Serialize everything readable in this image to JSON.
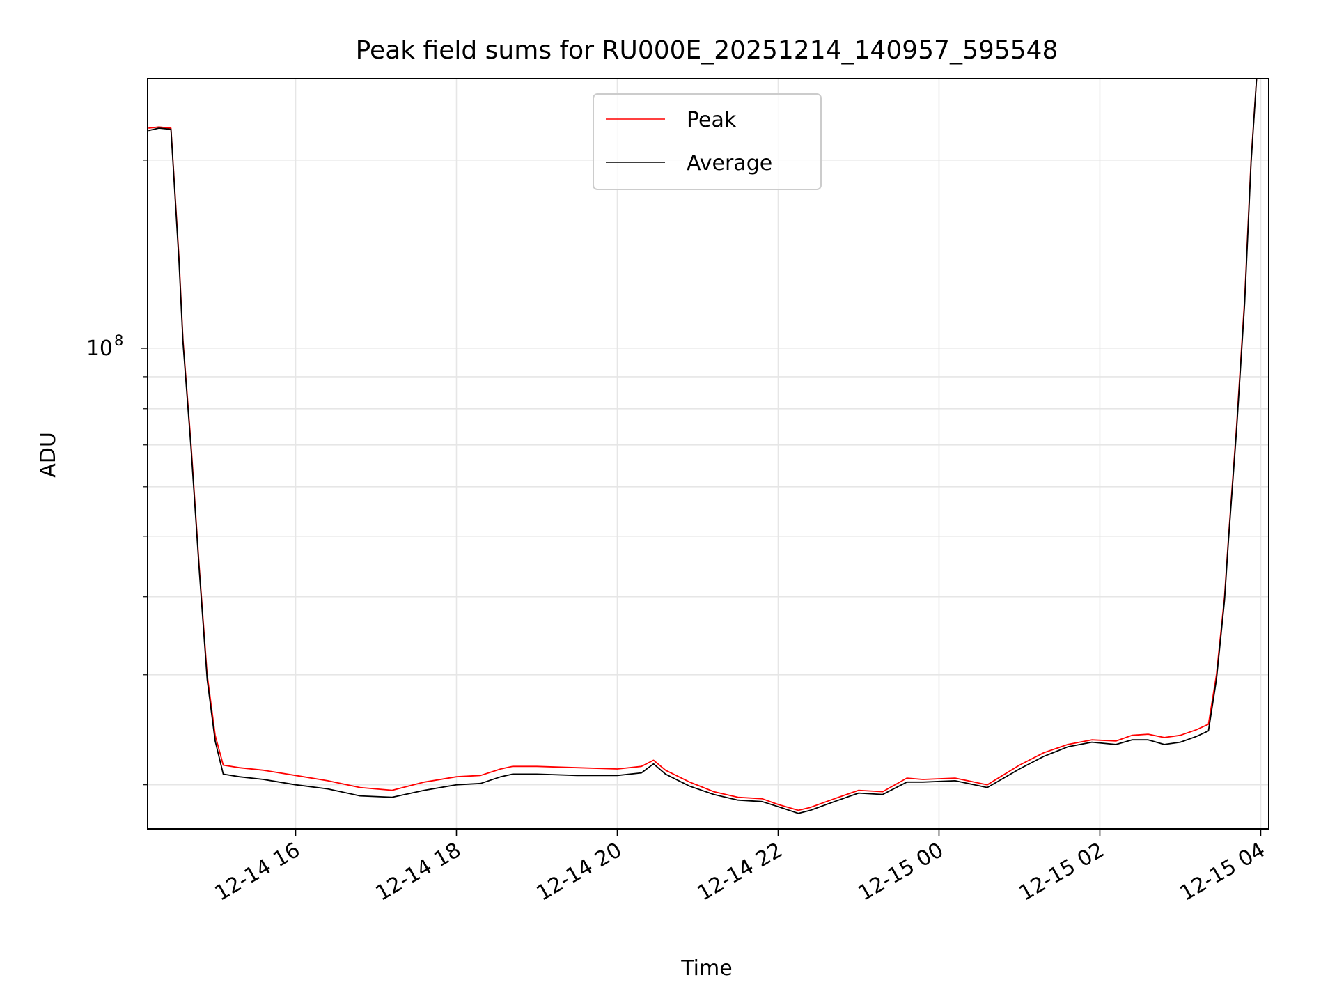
{
  "chart_data": {
    "type": "line",
    "title": "Peak field sums for RU000E_20251214_140957_595548",
    "xlabel": "Time",
    "ylabel": "ADU",
    "yscale": "log",
    "grid": true,
    "legend_placement": "upper center",
    "colors": {
      "peak": "#ff0000",
      "average": "#000000",
      "grid": "#e6e6e6"
    },
    "x_ticks": [
      {
        "hour": 16,
        "label": "12-14 16"
      },
      {
        "hour": 18,
        "label": "12-14 18"
      },
      {
        "hour": 20,
        "label": "12-14 20"
      },
      {
        "hour": 22,
        "label": "12-14 22"
      },
      {
        "hour": 24,
        "label": "12-15 00"
      },
      {
        "hour": 26,
        "label": "12-15 02"
      },
      {
        "hour": 28,
        "label": "12-15 04"
      }
    ],
    "y_major_ticks": [
      {
        "value": 100000000,
        "base": "10",
        "exp": "8"
      }
    ],
    "y_minor_ticks": [
      20000000,
      30000000,
      40000000,
      50000000,
      60000000,
      70000000,
      80000000,
      90000000,
      200000000
    ],
    "xlim_hours": [
      14.16,
      28.1
    ],
    "ylim": [
      17000000,
      270000000
    ],
    "x_units": "hours since 12-14 00:00",
    "series": [
      {
        "name": "Peak",
        "points": [
          [
            14.17,
            225000000
          ],
          [
            14.3,
            226000000
          ],
          [
            14.45,
            225000000
          ],
          [
            14.55,
            140000000
          ],
          [
            14.6,
            103000000
          ],
          [
            14.7,
            70000000
          ],
          [
            14.8,
            45000000
          ],
          [
            14.9,
            30000000
          ],
          [
            15.0,
            24000000
          ],
          [
            15.1,
            21500000
          ],
          [
            15.3,
            21300000
          ],
          [
            15.6,
            21100000
          ],
          [
            16.0,
            20700000
          ],
          [
            16.4,
            20300000
          ],
          [
            16.8,
            19800000
          ],
          [
            17.2,
            19600000
          ],
          [
            17.6,
            20200000
          ],
          [
            18.0,
            20600000
          ],
          [
            18.3,
            20700000
          ],
          [
            18.55,
            21200000
          ],
          [
            18.7,
            21400000
          ],
          [
            19.0,
            21400000
          ],
          [
            19.5,
            21300000
          ],
          [
            20.0,
            21200000
          ],
          [
            20.3,
            21400000
          ],
          [
            20.45,
            21900000
          ],
          [
            20.6,
            21100000
          ],
          [
            20.9,
            20200000
          ],
          [
            21.2,
            19500000
          ],
          [
            21.5,
            19100000
          ],
          [
            21.8,
            19000000
          ],
          [
            22.0,
            18600000
          ],
          [
            22.25,
            18200000
          ],
          [
            22.4,
            18400000
          ],
          [
            22.7,
            19000000
          ],
          [
            23.0,
            19600000
          ],
          [
            23.3,
            19500000
          ],
          [
            23.6,
            20500000
          ],
          [
            23.8,
            20400000
          ],
          [
            24.2,
            20500000
          ],
          [
            24.6,
            20000000
          ],
          [
            25.0,
            21500000
          ],
          [
            25.3,
            22500000
          ],
          [
            25.6,
            23200000
          ],
          [
            25.9,
            23600000
          ],
          [
            26.2,
            23500000
          ],
          [
            26.4,
            24000000
          ],
          [
            26.6,
            24100000
          ],
          [
            26.8,
            23800000
          ],
          [
            27.0,
            24000000
          ],
          [
            27.2,
            24500000
          ],
          [
            27.35,
            25000000
          ],
          [
            27.45,
            30000000
          ],
          [
            27.55,
            40000000
          ],
          [
            27.6,
            50000000
          ],
          [
            27.7,
            75000000
          ],
          [
            27.8,
            120000000
          ],
          [
            27.88,
            200000000
          ],
          [
            27.95,
            272000000
          ]
        ]
      },
      {
        "name": "Average",
        "points": [
          [
            14.17,
            223000000
          ],
          [
            14.3,
            225000000
          ],
          [
            14.45,
            224000000
          ],
          [
            14.55,
            138000000
          ],
          [
            14.6,
            102000000
          ],
          [
            14.7,
            69000000
          ],
          [
            14.8,
            44500000
          ],
          [
            14.9,
            29500000
          ],
          [
            15.0,
            23500000
          ],
          [
            15.1,
            20800000
          ],
          [
            15.3,
            20600000
          ],
          [
            15.6,
            20400000
          ],
          [
            16.0,
            20000000
          ],
          [
            16.4,
            19700000
          ],
          [
            16.8,
            19200000
          ],
          [
            17.2,
            19100000
          ],
          [
            17.6,
            19600000
          ],
          [
            18.0,
            20000000
          ],
          [
            18.3,
            20100000
          ],
          [
            18.55,
            20600000
          ],
          [
            18.7,
            20800000
          ],
          [
            19.0,
            20800000
          ],
          [
            19.5,
            20700000
          ],
          [
            20.0,
            20700000
          ],
          [
            20.3,
            20900000
          ],
          [
            20.45,
            21600000
          ],
          [
            20.6,
            20800000
          ],
          [
            20.9,
            19900000
          ],
          [
            21.2,
            19300000
          ],
          [
            21.5,
            18900000
          ],
          [
            21.8,
            18800000
          ],
          [
            22.0,
            18450000
          ],
          [
            22.25,
            18000000
          ],
          [
            22.4,
            18200000
          ],
          [
            22.7,
            18800000
          ],
          [
            23.0,
            19400000
          ],
          [
            23.3,
            19300000
          ],
          [
            23.6,
            20200000
          ],
          [
            23.8,
            20200000
          ],
          [
            24.2,
            20300000
          ],
          [
            24.6,
            19800000
          ],
          [
            25.0,
            21200000
          ],
          [
            25.3,
            22200000
          ],
          [
            25.6,
            23000000
          ],
          [
            25.9,
            23400000
          ],
          [
            26.2,
            23200000
          ],
          [
            26.4,
            23600000
          ],
          [
            26.6,
            23600000
          ],
          [
            26.8,
            23200000
          ],
          [
            27.0,
            23400000
          ],
          [
            27.2,
            23900000
          ],
          [
            27.35,
            24400000
          ],
          [
            27.45,
            29500000
          ],
          [
            27.55,
            39500000
          ],
          [
            27.6,
            49500000
          ],
          [
            27.7,
            74000000
          ],
          [
            27.8,
            118000000
          ],
          [
            27.88,
            198000000
          ],
          [
            27.95,
            272000000
          ]
        ]
      }
    ]
  }
}
